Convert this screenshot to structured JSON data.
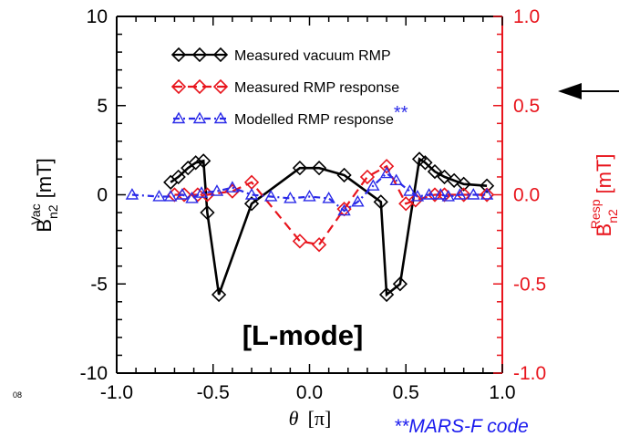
{
  "chart_data": {
    "type": "line",
    "annotation": "[L-mode]",
    "footnote": "**MARS-F code",
    "side_tag": "08",
    "xlabel": {
      "var": "θ",
      "unit": "[π]"
    },
    "xlim": [
      -1.0,
      1.0
    ],
    "x_ticks": [
      "-1.0",
      "-0.5",
      "0.0",
      "0.5",
      "1.0"
    ],
    "y_left": {
      "label_main": "B",
      "label_sup": "Vac",
      "label_sub": "n2",
      "label_unit": "[mT]",
      "ylim": [
        -10,
        10
      ],
      "ticks": [
        "10",
        "5",
        "0",
        "-5",
        "-10"
      ],
      "color": "#000000"
    },
    "y_right": {
      "label_main": "B",
      "label_sup": "Resp",
      "label_sub": "n2",
      "label_unit": "[mT]",
      "ylim": [
        -1.0,
        1.0
      ],
      "ticks": [
        "1.0",
        "0.5",
        "0.0",
        "-0.5",
        "-1.0"
      ],
      "color": "#e8141c"
    },
    "series": [
      {
        "name": "Measured vacuum RMP",
        "axis": "left",
        "color": "#000000",
        "marker": "diamond",
        "dash": "solid",
        "x": [
          -0.72,
          -0.68,
          -0.63,
          -0.59,
          -0.55,
          -0.53,
          -0.47,
          -0.3,
          -0.05,
          0.05,
          0.18,
          0.37,
          0.4,
          0.47,
          0.57,
          0.6,
          0.65,
          0.7,
          0.75,
          0.8,
          0.92
        ],
        "y": [
          0.7,
          1.0,
          1.5,
          1.8,
          1.9,
          -1.0,
          -5.6,
          -0.5,
          1.5,
          1.5,
          1.1,
          -0.4,
          -5.6,
          -5.0,
          2.0,
          1.8,
          1.3,
          1.0,
          0.8,
          0.6,
          0.5
        ]
      },
      {
        "name": "Measured RMP response",
        "axis": "right",
        "color": "#e8141c",
        "marker": "diamond",
        "dash": "dashed",
        "x": [
          -0.7,
          -0.65,
          -0.58,
          -0.53,
          -0.4,
          -0.3,
          -0.05,
          0.05,
          0.18,
          0.3,
          0.4,
          0.5,
          0.55,
          0.65,
          0.7,
          0.8,
          0.92
        ],
        "y": [
          0.0,
          0.0,
          0.0,
          0.0,
          0.02,
          0.07,
          -0.26,
          -0.28,
          -0.08,
          0.1,
          0.16,
          -0.05,
          -0.03,
          0.0,
          0.0,
          0.0,
          0.0
        ]
      },
      {
        "name": "Modelled RMP response",
        "name_mark": "**",
        "axis": "right",
        "color": "#2a2ae8",
        "marker": "triangle",
        "dash": "dashdot",
        "x": [
          -0.92,
          -0.78,
          -0.72,
          -0.66,
          -0.61,
          -0.56,
          -0.48,
          -0.4,
          -0.3,
          -0.2,
          -0.1,
          0.0,
          0.1,
          0.18,
          0.25,
          0.33,
          0.4,
          0.45,
          0.52,
          0.56,
          0.62,
          0.68,
          0.72,
          0.78,
          0.85,
          0.92
        ],
        "y": [
          0.0,
          -0.01,
          -0.01,
          0.0,
          -0.02,
          0.01,
          0.02,
          0.04,
          0.0,
          -0.01,
          -0.02,
          -0.01,
          -0.02,
          -0.09,
          -0.04,
          0.05,
          0.12,
          0.08,
          0.02,
          -0.01,
          0.0,
          0.0,
          -0.01,
          0.0,
          0.0,
          0.0
        ]
      }
    ]
  },
  "colors": {
    "left_axis": "#000000",
    "right_axis": "#e8141c",
    "modelled": "#2a2ae8"
  }
}
